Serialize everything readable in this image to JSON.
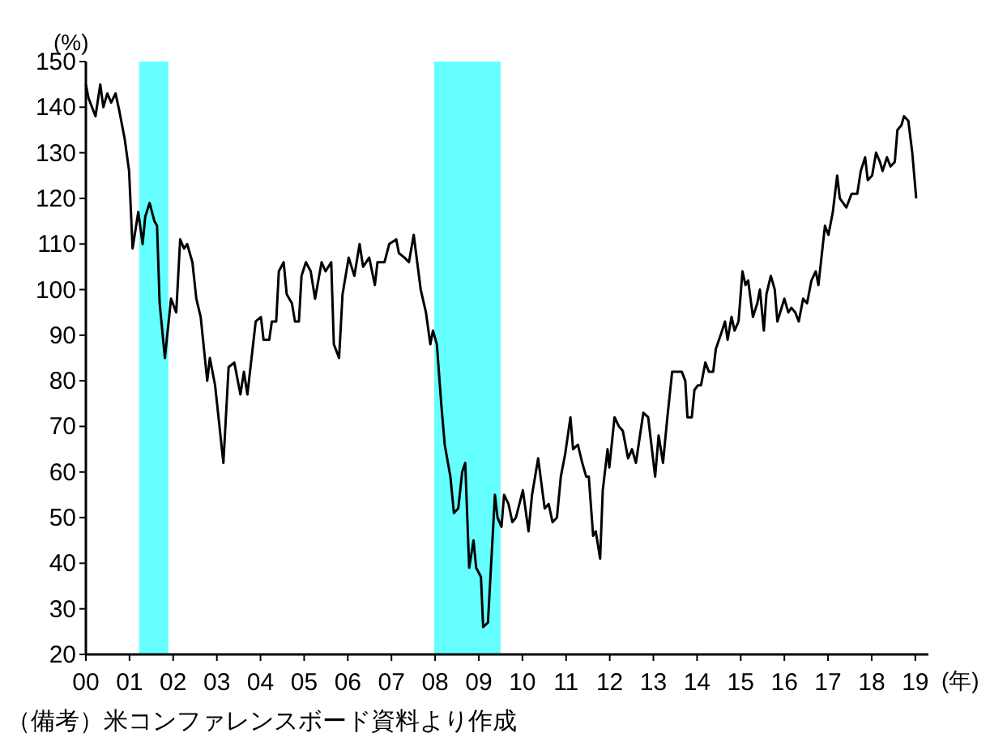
{
  "chart_data": {
    "type": "line",
    "ylabel": "(%)",
    "xlabel": "(年)",
    "annotations": [
      "（備考）米コンファレンスボード資料より作成"
    ],
    "xlim": [
      2000,
      2019.3
    ],
    "ylim": [
      20,
      150
    ],
    "xticks": [
      {
        "value": 2000,
        "label": "00"
      },
      {
        "value": 2001,
        "label": "01"
      },
      {
        "value": 2002,
        "label": "02"
      },
      {
        "value": 2003,
        "label": "03"
      },
      {
        "value": 2004,
        "label": "04"
      },
      {
        "value": 2005,
        "label": "05"
      },
      {
        "value": 2006,
        "label": "06"
      },
      {
        "value": 2007,
        "label": "07"
      },
      {
        "value": 2008,
        "label": "08"
      },
      {
        "value": 2009,
        "label": "09"
      },
      {
        "value": 2010,
        "label": "10"
      },
      {
        "value": 2011,
        "label": "11"
      },
      {
        "value": 2012,
        "label": "12"
      },
      {
        "value": 2013,
        "label": "13"
      },
      {
        "value": 2014,
        "label": "14"
      },
      {
        "value": 2015,
        "label": "15"
      },
      {
        "value": 2016,
        "label": "16"
      },
      {
        "value": 2017,
        "label": "17"
      },
      {
        "value": 2018,
        "label": "18"
      },
      {
        "value": 2019,
        "label": "19"
      }
    ],
    "yticks": [
      20,
      30,
      40,
      50,
      60,
      70,
      80,
      90,
      100,
      110,
      120,
      130,
      140,
      150
    ],
    "bands": [
      {
        "axis": "x",
        "from": 2001.22,
        "to": 2001.89,
        "color": "#66ffff"
      },
      {
        "axis": "x",
        "from": 2007.98,
        "to": 2009.5,
        "color": "#66ffff"
      }
    ],
    "series": [
      {
        "color": "#000000",
        "x": [
          2000.0,
          2000.06,
          2000.22,
          2000.33,
          2000.4,
          2000.49,
          2000.58,
          2000.68,
          2000.77,
          2000.89,
          2000.99,
          2001.07,
          2001.2,
          2001.3,
          2001.36,
          2001.46,
          2001.57,
          2001.63,
          2001.69,
          2001.81,
          2001.95,
          2002.07,
          2002.16,
          2002.25,
          2002.32,
          2002.44,
          2002.53,
          2002.63,
          2002.78,
          2002.84,
          2002.96,
          2003.15,
          2003.27,
          2003.4,
          2003.54,
          2003.62,
          2003.7,
          2003.89,
          2004.01,
          2004.07,
          2004.2,
          2004.26,
          2004.36,
          2004.42,
          2004.53,
          2004.6,
          2004.72,
          2004.79,
          2004.88,
          2004.94,
          2005.04,
          2005.15,
          2005.25,
          2005.4,
          2005.49,
          2005.62,
          2005.68,
          2005.8,
          2005.88,
          2006.02,
          2006.15,
          2006.27,
          2006.35,
          2006.49,
          2006.62,
          2006.68,
          2006.84,
          2006.95,
          2007.11,
          2007.17,
          2007.3,
          2007.4,
          2007.51,
          2007.67,
          2007.79,
          2007.89,
          2007.95,
          2008.04,
          2008.14,
          2008.22,
          2008.35,
          2008.43,
          2008.53,
          2008.62,
          2008.69,
          2008.78,
          2008.88,
          2008.94,
          2009.05,
          2009.1,
          2009.21,
          2009.37,
          2009.43,
          2009.52,
          2009.58,
          2009.68,
          2009.77,
          2009.85,
          2010.01,
          2010.14,
          2010.22,
          2010.36,
          2010.51,
          2010.6,
          2010.69,
          2010.79,
          2010.88,
          2010.98,
          2011.1,
          2011.16,
          2011.27,
          2011.37,
          2011.46,
          2011.52,
          2011.62,
          2011.68,
          2011.78,
          2011.84,
          2011.95,
          2011.99,
          2012.11,
          2012.21,
          2012.3,
          2012.42,
          2012.51,
          2012.6,
          2012.77,
          2012.88,
          2013.04,
          2013.12,
          2013.22,
          2013.32,
          2013.43,
          2013.56,
          2013.65,
          2013.73,
          2013.78,
          2013.88,
          2013.94,
          2014.02,
          2014.09,
          2014.19,
          2014.27,
          2014.37,
          2014.43,
          2014.54,
          2014.64,
          2014.7,
          2014.79,
          2014.86,
          2014.95,
          2015.04,
          2015.11,
          2015.17,
          2015.28,
          2015.38,
          2015.44,
          2015.53,
          2015.59,
          2015.69,
          2015.78,
          2015.84,
          2016.0,
          2016.09,
          2016.16,
          2016.25,
          2016.33,
          2016.43,
          2016.52,
          2016.62,
          2016.72,
          2016.78,
          2016.93,
          2017.01,
          2017.11,
          2017.21,
          2017.27,
          2017.42,
          2017.54,
          2017.67,
          2017.75,
          2017.85,
          2017.91,
          2018.01,
          2018.1,
          2018.19,
          2018.25,
          2018.35,
          2018.43,
          2018.53,
          2018.59,
          2018.68,
          2018.74,
          2018.84,
          2018.93,
          2019.02
        ],
        "values": [
          145,
          142,
          138,
          145,
          140,
          143,
          141,
          143,
          139,
          133,
          126,
          109,
          117,
          110,
          116,
          119,
          115,
          114,
          97,
          85,
          98,
          95,
          111,
          109,
          110,
          106,
          98,
          94,
          80,
          85,
          79,
          62,
          83,
          84,
          77,
          82,
          77,
          93,
          94,
          89,
          89,
          93,
          93,
          104,
          106,
          99,
          97,
          93,
          93,
          103,
          106,
          104,
          98,
          106,
          104,
          106,
          88,
          85,
          99,
          107,
          103,
          110,
          105,
          107,
          101,
          106,
          106,
          110,
          111,
          108,
          107,
          106,
          112,
          100,
          95,
          88,
          91,
          88,
          75,
          66,
          59,
          51,
          52,
          60,
          62,
          39,
          45,
          39,
          37,
          26,
          27,
          55,
          50,
          48,
          55,
          53,
          49,
          50,
          56,
          47,
          55,
          63,
          52,
          53,
          49,
          50,
          59,
          64,
          72,
          65,
          66,
          62,
          59,
          59,
          46,
          47,
          41,
          56,
          65,
          61,
          72,
          70,
          69,
          63,
          65,
          62,
          73,
          72,
          59,
          68,
          62,
          72,
          82,
          82,
          82,
          80,
          72,
          72,
          78,
          79,
          79,
          84,
          82,
          82,
          87,
          90,
          93,
          89,
          94,
          91,
          93,
          104,
          101,
          102,
          94,
          97,
          100,
          91,
          99,
          103,
          100,
          93,
          98,
          95,
          96,
          95,
          93,
          98,
          97,
          102,
          104,
          101,
          114,
          112,
          117,
          125,
          120,
          118,
          121,
          121,
          126,
          129,
          124,
          125,
          130,
          128,
          126,
          129,
          127,
          128,
          135,
          136,
          138,
          137,
          130,
          120
        ]
      }
    ]
  }
}
